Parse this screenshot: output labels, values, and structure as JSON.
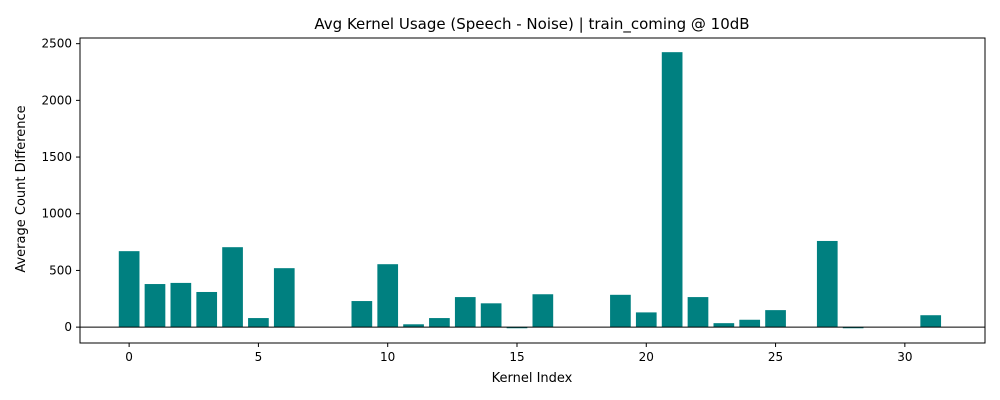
{
  "chart_data": {
    "type": "bar",
    "title": "Avg Kernel Usage (Speech - Noise) | train_coming @ 10dB",
    "xlabel": "Kernel Index",
    "ylabel": "Average Count Difference",
    "x": [
      0,
      1,
      2,
      3,
      4,
      5,
      6,
      7,
      8,
      9,
      10,
      11,
      12,
      13,
      14,
      15,
      16,
      17,
      18,
      19,
      20,
      21,
      22,
      23,
      24,
      25,
      26,
      27,
      28,
      29,
      30,
      31
    ],
    "values": [
      670,
      380,
      390,
      310,
      705,
      80,
      520,
      0,
      0,
      230,
      555,
      25,
      80,
      265,
      210,
      -10,
      290,
      0,
      0,
      285,
      130,
      2425,
      265,
      35,
      65,
      150,
      0,
      760,
      -10,
      0,
      0,
      105
    ],
    "xlim": [
      -1.9,
      33.1
    ],
    "ylim": [
      -140,
      2550
    ],
    "xticks": [
      0,
      5,
      10,
      15,
      20,
      25,
      30
    ],
    "yticks": [
      0,
      500,
      1000,
      1500,
      2000,
      2500
    ],
    "bar_color": "#008080",
    "zero_line": true,
    "grid": false,
    "legend": "none"
  }
}
